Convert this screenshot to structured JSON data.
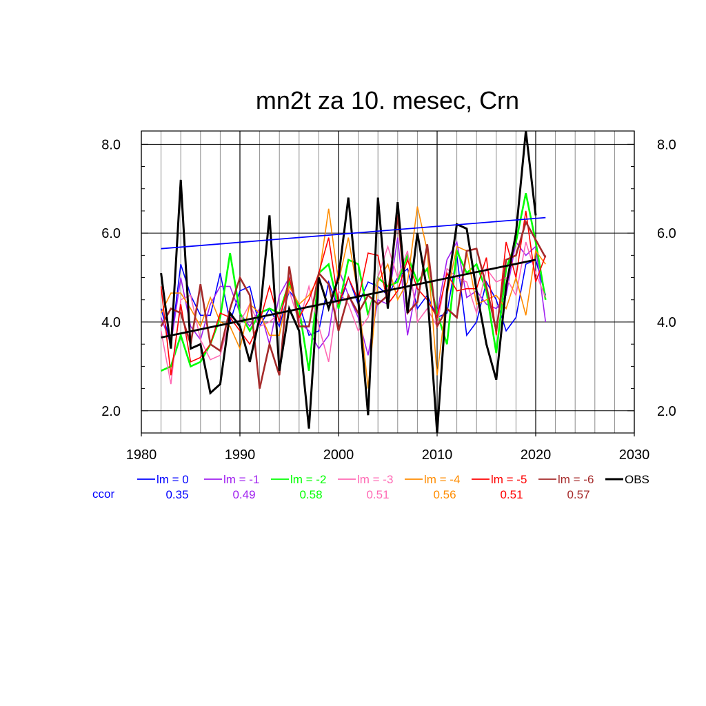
{
  "chart_data": {
    "type": "line",
    "title": "mn2t za 10. mesec, Crn",
    "xlabel": "",
    "ylabel": "",
    "xlim": [
      1980,
      2030
    ],
    "ylim": [
      1.5,
      8.3
    ],
    "x_ticks": [
      1980,
      1990,
      2000,
      2010,
      2020,
      2030
    ],
    "x_tick_labels": [
      "1980",
      "1990",
      "2000",
      "2010",
      "2020",
      "2030"
    ],
    "y_ticks": [
      2.0,
      4.0,
      6.0,
      8.0
    ],
    "y_tick_labels": [
      "2.0",
      "4.0",
      "6.0",
      "8.0"
    ],
    "grid": true,
    "legend_position": "bottom",
    "ccor_label": "ccor",
    "series": [
      {
        "name": "lm = 0",
        "color": "#0000ff",
        "ccor": "0.35",
        "stroke": 1.6,
        "x_start": 1982,
        "values": [
          4.3,
          3.5,
          5.3,
          4.6,
          4.15,
          4.15,
          5.1,
          4.0,
          4.7,
          4.8,
          3.9,
          4.3,
          3.9,
          4.7,
          4.4,
          3.7,
          3.8,
          4.9,
          4.3,
          5.0,
          4.4,
          4.9,
          4.8,
          4.6,
          5.0,
          5.2,
          4.3,
          4.6,
          4.1,
          4.2,
          5.5,
          3.7,
          4.0,
          4.9,
          4.5,
          3.8,
          4.1,
          5.3,
          5.4,
          4.6
        ],
        "trend": [
          5.65,
          6.35
        ]
      },
      {
        "name": "lm = -1",
        "color": "#a020f0",
        "ccor": "0.49",
        "stroke": 1.6,
        "x_start": 1982,
        "values": [
          4.1,
          3.5,
          5.0,
          3.9,
          3.6,
          4.4,
          4.8,
          4.8,
          4.2,
          3.9,
          4.3,
          3.5,
          4.6,
          5.0,
          4.0,
          3.8,
          3.4,
          3.7,
          5.2,
          4.6,
          4.1,
          3.25,
          4.5,
          4.4,
          5.9,
          3.7,
          4.9,
          5.2,
          4.2,
          5.4,
          5.8,
          4.55,
          4.7,
          4.4,
          4.3,
          4.6,
          5.8,
          5.5,
          5.7,
          4.0
        ]
      },
      {
        "name": "lm = -2",
        "color": "#00ff00",
        "ccor": "0.58",
        "stroke": 2.6,
        "x_start": 1982,
        "values": [
          2.9,
          3.0,
          3.7,
          3.0,
          3.1,
          3.5,
          4.1,
          5.55,
          4.2,
          3.8,
          4.2,
          4.3,
          4.2,
          4.9,
          4.3,
          2.9,
          5.1,
          5.3,
          4.3,
          5.4,
          5.3,
          4.15,
          5.0,
          4.8,
          4.9,
          5.5,
          4.9,
          5.2,
          4.2,
          3.5,
          5.6,
          5.1,
          5.3,
          4.7,
          3.3,
          5.2,
          5.8,
          6.9,
          5.8,
          4.5
        ]
      },
      {
        "name": "lm = -3",
        "color": "#ff69b4",
        "ccor": "0.51",
        "stroke": 1.6,
        "x_start": 1982,
        "values": [
          3.8,
          2.6,
          4.5,
          4.6,
          3.6,
          3.15,
          3.25,
          4.1,
          4.0,
          4.4,
          3.9,
          4.0,
          4.2,
          4.7,
          4.0,
          4.8,
          3.9,
          3.1,
          4.7,
          4.4,
          3.8,
          4.1,
          5.0,
          5.7,
          5.0,
          5.6,
          4.0,
          4.3,
          3.9,
          5.2,
          5.0,
          4.9,
          4.2,
          5.2,
          4.9,
          5.0,
          4.6,
          5.8,
          5.1,
          4.55
        ]
      },
      {
        "name": "lm = -4",
        "color": "#ff8c00",
        "ccor": "0.56",
        "stroke": 1.6,
        "x_start": 1982,
        "values": [
          4.2,
          4.65,
          4.65,
          4.3,
          3.9,
          4.55,
          4.0,
          3.9,
          3.4,
          4.4,
          4.2,
          3.7,
          3.7,
          4.8,
          4.4,
          4.6,
          5.0,
          6.55,
          4.9,
          5.9,
          4.6,
          2.5,
          4.9,
          5.3,
          4.5,
          4.9,
          6.6,
          5.6,
          2.8,
          4.6,
          5.7,
          5.6,
          4.4,
          4.5,
          4.6,
          4.3,
          5.0,
          4.15,
          5.6,
          5.3
        ]
      },
      {
        "name": "lm = -5",
        "color": "#ff0000",
        "ccor": "0.51",
        "stroke": 1.6,
        "x_start": 1982,
        "values": [
          4.8,
          2.8,
          4.4,
          3.1,
          3.2,
          3.5,
          4.2,
          4.1,
          3.8,
          3.5,
          4.0,
          4.8,
          4.0,
          5.0,
          4.1,
          4.5,
          5.1,
          5.9,
          4.4,
          5.0,
          4.5,
          5.55,
          5.5,
          4.4,
          4.7,
          5.4,
          4.75,
          4.5,
          4.1,
          5.1,
          4.7,
          4.75,
          4.75,
          5.45,
          3.7,
          5.8,
          5.0,
          6.5,
          4.9,
          5.5
        ]
      },
      {
        "name": "lm = -6",
        "color": "#a52a2a",
        "ccor": "0.57",
        "stroke": 2.6,
        "x_start": 1982,
        "values": [
          3.9,
          4.3,
          4.2,
          3.5,
          4.85,
          3.5,
          3.35,
          4.3,
          5.0,
          4.6,
          2.5,
          3.5,
          2.8,
          5.25,
          3.9,
          3.9,
          5.1,
          4.85,
          3.8,
          4.6,
          4.2,
          4.6,
          4.4,
          4.6,
          6.4,
          4.2,
          4.45,
          5.75,
          3.9,
          4.3,
          4.1,
          5.6,
          5.65,
          4.8,
          3.8,
          5.4,
          5.5,
          6.25,
          5.85,
          5.45
        ]
      },
      {
        "name": "OBS",
        "color": "#000000",
        "ccor": "",
        "stroke": 3,
        "x_start": 1982,
        "values": [
          5.1,
          3.4,
          7.2,
          3.4,
          3.5,
          2.4,
          2.6,
          4.2,
          3.9,
          3.1,
          4.1,
          6.4,
          2.9,
          4.3,
          3.8,
          1.6,
          5.0,
          4.3,
          5.0,
          6.8,
          4.5,
          1.9,
          6.8,
          4.3,
          6.7,
          4.2,
          6.0,
          4.7,
          1.5,
          4.7,
          6.2,
          6.1,
          4.7,
          3.5,
          2.7,
          4.8,
          6.0,
          8.3,
          6.4
        ],
        "trend": [
          3.65,
          5.4
        ]
      }
    ]
  }
}
